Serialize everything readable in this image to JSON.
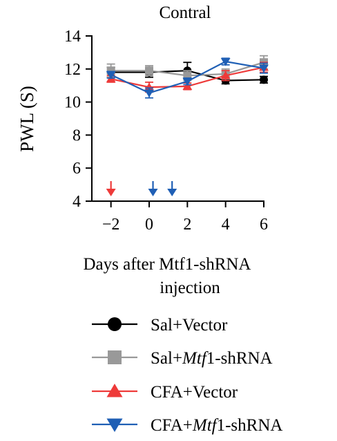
{
  "chart_data": {
    "type": "line",
    "title": "Contral",
    "ylabel": "PWL (S)",
    "xlabel_lines": [
      "Days after Mtf1-shRNA",
      "injection"
    ],
    "x": [
      -2,
      0,
      2,
      4,
      6
    ],
    "xticks": [
      -2,
      0,
      2,
      4,
      6
    ],
    "xtick_labels": [
      "−2",
      "0",
      "2",
      "4",
      "6"
    ],
    "yticks": [
      4,
      6,
      8,
      10,
      12,
      14
    ],
    "xlim": [
      -3,
      6
    ],
    "ylim": [
      4,
      14
    ],
    "grid": false,
    "legend_position": "bottom",
    "series": [
      {
        "name": "Sal+Vector",
        "legend": [
          "Sal+Vector"
        ],
        "color": "#000000",
        "marker": "circle",
        "values": [
          11.8,
          11.8,
          11.9,
          11.3,
          11.35
        ],
        "err": [
          0.3,
          0.3,
          0.5,
          0.2,
          0.2
        ]
      },
      {
        "name": "Sal+Mtf1-shRNA",
        "legend": [
          "Sal+",
          "Mtf",
          "1-shRNA"
        ],
        "color": "#999999",
        "marker": "square",
        "values": [
          11.9,
          11.9,
          11.6,
          11.7,
          12.4
        ],
        "err": [
          0.4,
          0.3,
          0.3,
          0.3,
          0.4
        ]
      },
      {
        "name": "CFA+Vector",
        "legend": [
          "CFA+Vector"
        ],
        "color": "#ee3a39",
        "marker": "triangle-up",
        "values": [
          11.4,
          10.9,
          10.95,
          11.6,
          12.1
        ],
        "err": [
          0.2,
          0.3,
          0.2,
          0.3,
          0.3
        ]
      },
      {
        "name": "CFA+Mtf1-shRNA",
        "legend": [
          "CFA+",
          "Mtf",
          "1-shRNA"
        ],
        "color": "#1f5fb5",
        "marker": "triangle-down",
        "values": [
          11.65,
          10.55,
          11.25,
          12.45,
          12.05
        ],
        "err": [
          0.2,
          0.3,
          0.2,
          0.2,
          0.3
        ]
      }
    ],
    "injection_arrows": [
      {
        "x": -2,
        "color": "#ee3a39"
      },
      {
        "x": 0.2,
        "color": "#1f5fb5"
      },
      {
        "x": 1.2,
        "color": "#1f5fb5"
      }
    ]
  }
}
